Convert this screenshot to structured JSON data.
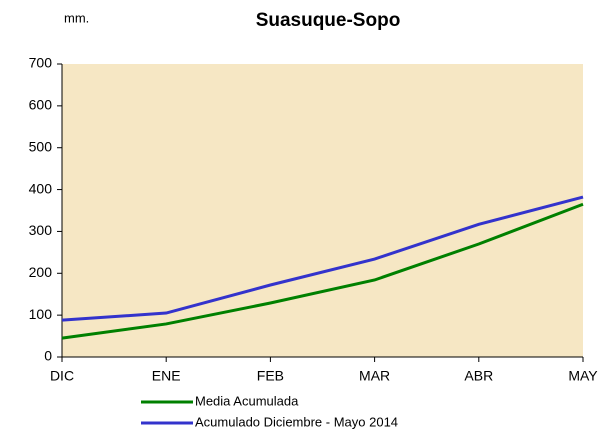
{
  "chart_data": {
    "type": "line",
    "title": "Suasuque-Sopo",
    "y_label": "mm.",
    "categories": [
      "DIC",
      "ENE",
      "FEB",
      "MAR",
      "ABR",
      "MAY"
    ],
    "series": [
      {
        "name": "Media Acumulada",
        "color": "#008000",
        "values": [
          45,
          79,
          129,
          184,
          270,
          365
        ]
      },
      {
        "name": "Acumulado Diciembre - Mayo 2014",
        "color": "#3333cc",
        "values": [
          88,
          105,
          172,
          234,
          317,
          382
        ]
      }
    ],
    "ylim": [
      0,
      700
    ],
    "yticks": [
      0,
      100,
      200,
      300,
      400,
      500,
      600,
      700
    ],
    "grid": false,
    "plot_background": "#f6e7c4",
    "legend": "bottom"
  }
}
